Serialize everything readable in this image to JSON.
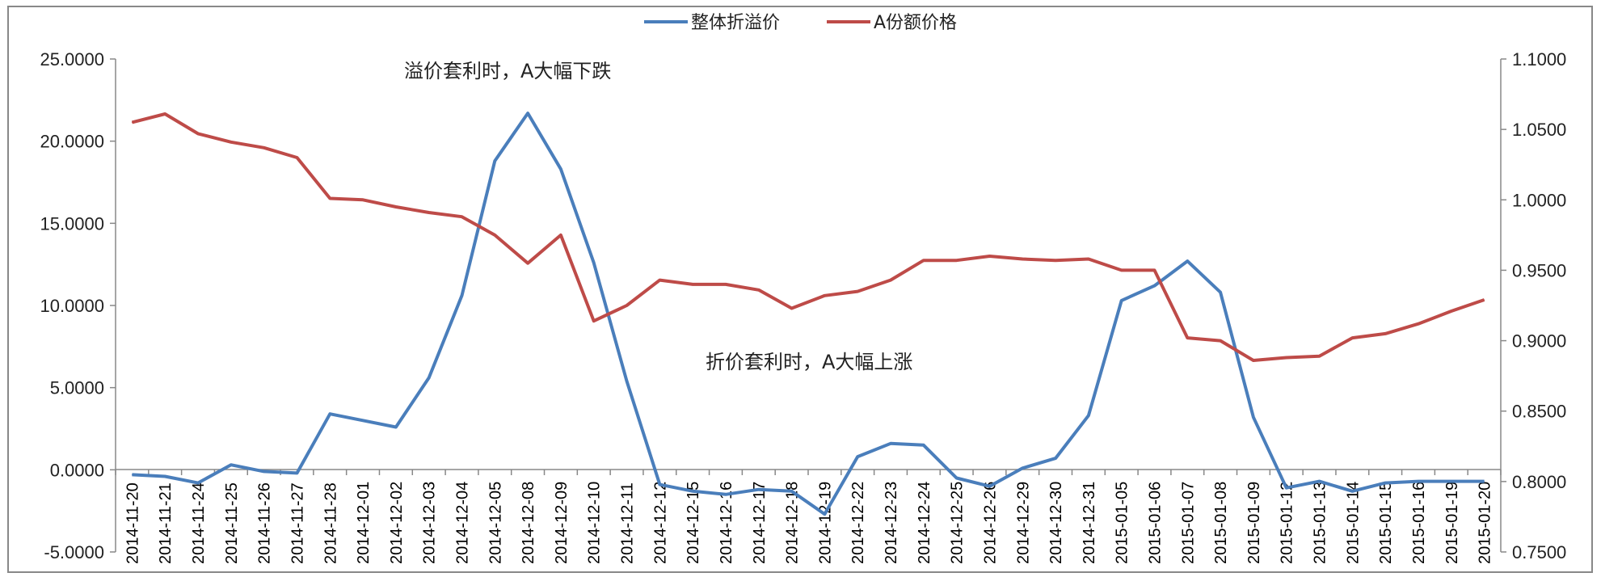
{
  "chart_data": {
    "type": "line",
    "categories": [
      "2014-11-20",
      "2014-11-21",
      "2014-11-24",
      "2014-11-25",
      "2014-11-26",
      "2014-11-27",
      "2014-11-28",
      "2014-12-01",
      "2014-12-02",
      "2014-12-03",
      "2014-12-04",
      "2014-12-05",
      "2014-12-08",
      "2014-12-09",
      "2014-12-10",
      "2014-12-11",
      "2014-12-12",
      "2014-12-15",
      "2014-12-16",
      "2014-12-17",
      "2014-12-18",
      "2014-12-19",
      "2014-12-22",
      "2014-12-23",
      "2014-12-24",
      "2014-12-25",
      "2014-12-26",
      "2014-12-29",
      "2014-12-30",
      "2014-12-31",
      "2015-01-05",
      "2015-01-06",
      "2015-01-07",
      "2015-01-08",
      "2015-01-09",
      "2015-01-12",
      "2015-01-13",
      "2015-01-14",
      "2015-01-15",
      "2015-01-16",
      "2015-01-19",
      "2015-01-20"
    ],
    "series": [
      {
        "name": "整体折溢价",
        "axis": "left",
        "color": "#4a7ebb",
        "values": [
          -0.3,
          -0.4,
          -0.8,
          0.3,
          -0.1,
          -0.2,
          3.4,
          3.0,
          2.6,
          5.6,
          10.6,
          18.8,
          21.7,
          18.3,
          12.6,
          5.4,
          -0.9,
          -1.3,
          -1.5,
          -1.2,
          -1.3,
          -2.7,
          0.8,
          1.6,
          1.5,
          -0.5,
          -1.0,
          0.1,
          0.7,
          3.3,
          10.3,
          11.2,
          12.7,
          10.8,
          3.2,
          -1.1,
          -0.7,
          -1.3,
          -0.8,
          -0.7,
          -0.7,
          -0.7
        ]
      },
      {
        "name": "A份额价格",
        "axis": "right",
        "color": "#be4b48",
        "values": [
          1.055,
          1.061,
          1.047,
          1.041,
          1.037,
          1.03,
          1.001,
          1.0,
          0.995,
          0.991,
          0.988,
          0.975,
          0.955,
          0.975,
          0.914,
          0.925,
          0.943,
          0.94,
          0.94,
          0.936,
          0.923,
          0.932,
          0.935,
          0.943,
          0.957,
          0.957,
          0.96,
          0.958,
          0.957,
          0.958,
          0.95,
          0.95,
          0.902,
          0.9,
          0.886,
          0.888,
          0.889,
          0.902,
          0.905,
          0.912,
          0.921,
          0.929
        ]
      }
    ],
    "y_left": {
      "ylim": [
        -5,
        25
      ],
      "ticks": [
        "-5.0000",
        "0.0000",
        "5.0000",
        "10.0000",
        "15.0000",
        "20.0000",
        "25.0000"
      ]
    },
    "y_right": {
      "ylim": [
        0.75,
        1.1
      ],
      "ticks": [
        "0.7500",
        "0.8000",
        "0.8500",
        "0.9000",
        "0.9500",
        "1.0000",
        "1.0500",
        "1.1000"
      ]
    },
    "legend_position": "top-center",
    "grid": false,
    "annotations": [
      {
        "text": "溢价套利时，A大幅下跌"
      },
      {
        "text": "折价套利时，A大幅上涨"
      }
    ]
  }
}
